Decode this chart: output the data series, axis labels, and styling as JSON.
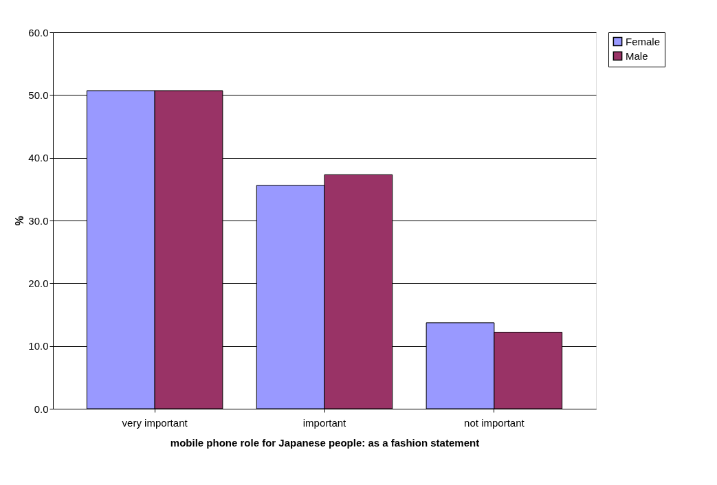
{
  "chart_data": {
    "type": "bar",
    "xlabel": "mobile phone role for Japanese people: as a fashion statement",
    "ylabel": "%",
    "categories": [
      "very important",
      "important",
      "not important"
    ],
    "series": [
      {
        "name": "Female",
        "color": "#9999ff",
        "values": [
          50.7,
          35.6,
          13.7
        ]
      },
      {
        "name": "Male",
        "color": "#993366",
        "values": [
          50.7,
          37.3,
          12.2
        ]
      }
    ],
    "ylim": [
      0,
      60
    ],
    "yticks": [
      {
        "value": 0,
        "label": "0.0"
      },
      {
        "value": 10,
        "label": "10.0"
      },
      {
        "value": 20,
        "label": "20.0"
      },
      {
        "value": 30,
        "label": "30.0"
      },
      {
        "value": 40,
        "label": "40.0"
      },
      {
        "value": 50,
        "label": "50.0"
      },
      {
        "value": 60,
        "label": "60.0"
      }
    ],
    "grid": "y",
    "legend": "right"
  }
}
